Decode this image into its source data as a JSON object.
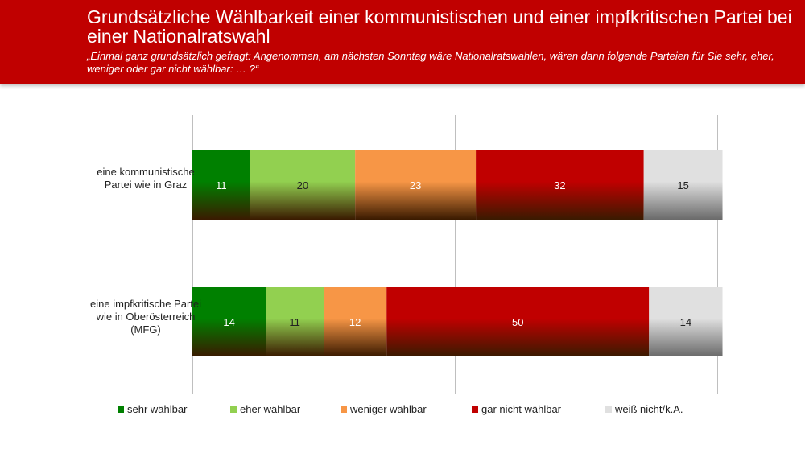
{
  "header": {
    "title": "Grundsätzliche Wählbarkeit einer kommunistischen und einer impfkritischen Partei bei einer Nationalratswahl",
    "subtitle": "„Einmal ganz grundsätzlich gefragt: Angenommen,  am nächsten Sonntag wäre Nationalratswahlen, wären dann folgende Parteien für Sie sehr, eher, weniger oder gar nicht wählbar: … ?“"
  },
  "chart_data": {
    "type": "bar",
    "orientation": "horizontal",
    "stacked": true,
    "categories": [
      "eine kommunistische Partei wie in Graz",
      "eine impfkritische Partei wie in Oberösterreich (MFG)"
    ],
    "series": [
      {
        "name": "sehr wählbar",
        "values": [
          11,
          14
        ],
        "color": "#008000"
      },
      {
        "name": "eher wählbar",
        "values": [
          20,
          11
        ],
        "color": "#92d050"
      },
      {
        "name": "weniger wählbar",
        "values": [
          23,
          12
        ],
        "color": "#f79646"
      },
      {
        "name": "gar nicht wählbar",
        "values": [
          32,
          50
        ],
        "color": "#c00000"
      },
      {
        "name": "weiß nicht/k.A.",
        "values": [
          15,
          14
        ],
        "color": "#e0e0e0"
      }
    ],
    "xlim": [
      0,
      100
    ],
    "gridlines": [
      0,
      50,
      100
    ],
    "legend_position": "bottom"
  }
}
